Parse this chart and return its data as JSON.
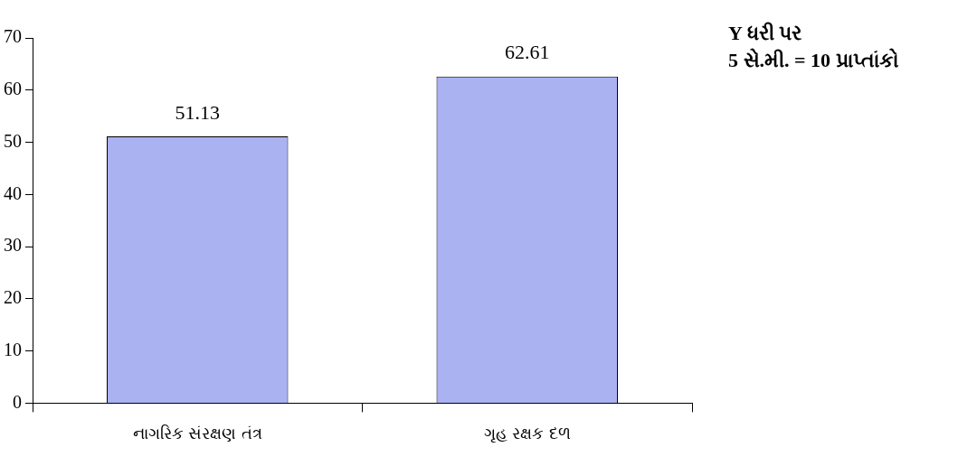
{
  "chart_data": {
    "type": "bar",
    "categories": [
      "નાગરિક સંરક્ષણ તંત્ર",
      "ગૃહ રક્ષક દળ"
    ],
    "values": [
      51.13,
      62.61
    ],
    "color": "#aab2f2",
    "ylim": [
      0,
      70
    ],
    "yticks": [
      0,
      10,
      20,
      30,
      40,
      50,
      60,
      70
    ],
    "grid": false,
    "legend": false,
    "data_labels": true,
    "annotations": [
      "Y ધરી પર",
      "5 સે.મી. = 10 પ્રાપ્તાંકો"
    ]
  }
}
